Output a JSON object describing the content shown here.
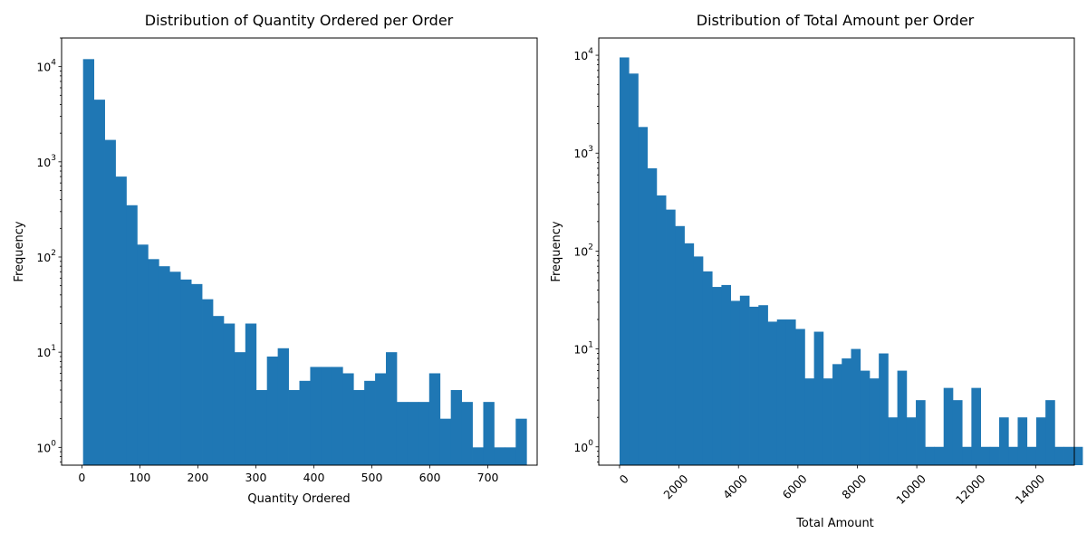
{
  "chart_data": [
    {
      "type": "bar",
      "title": "Distribution of Quantity Ordered per Order",
      "xlabel": "Quantity Ordered",
      "ylabel": "Frequency",
      "yscale": "log",
      "xlim": [
        -35,
        785
      ],
      "ylim": [
        0.65,
        20000
      ],
      "bin_start": 2,
      "bin_width": 18.65,
      "values": [
        12000,
        4500,
        1700,
        700,
        350,
        135,
        95,
        80,
        70,
        58,
        52,
        36,
        24,
        20,
        10,
        20,
        4,
        9,
        11,
        4,
        5,
        7,
        7,
        7,
        6,
        4,
        5,
        6,
        10,
        3,
        3,
        3,
        6,
        2,
        4,
        3,
        1,
        3,
        1,
        1,
        2
      ],
      "xticks": [
        0,
        100,
        200,
        300,
        400,
        500,
        600,
        700
      ],
      "xtick_labels": [
        "0",
        "100",
        "200",
        "300",
        "400",
        "500",
        "600",
        "700"
      ],
      "xtick_rotation": 0,
      "yticks": [
        1,
        10,
        100,
        1000,
        10000
      ],
      "ytick_labels": [
        {
          "base": "10",
          "exp": "0"
        },
        {
          "base": "10",
          "exp": "1"
        },
        {
          "base": "10",
          "exp": "2"
        },
        {
          "base": "10",
          "exp": "3"
        },
        {
          "base": "10",
          "exp": "4"
        }
      ],
      "color": "#1f77b4",
      "grid": false
    },
    {
      "type": "bar",
      "title": "Distribution of Total Amount per Order",
      "xlabel": "Total Amount",
      "ylabel": "Frequency",
      "yscale": "log",
      "xlim": [
        -700,
        15300
      ],
      "ylim": [
        0.65,
        15000
      ],
      "bin_start": 0,
      "bin_width": 311.5,
      "values": [
        9500,
        6500,
        1850,
        700,
        370,
        265,
        180,
        120,
        88,
        62,
        43,
        45,
        31,
        35,
        27,
        28,
        19,
        20,
        20,
        16,
        5,
        15,
        5,
        7,
        8,
        10,
        6,
        5,
        9,
        2,
        6,
        2,
        3,
        1,
        1,
        4,
        3,
        1,
        4,
        1,
        1,
        2,
        1,
        2,
        1,
        2,
        3,
        1,
        1,
        1
      ],
      "xticks": [
        0,
        2000,
        4000,
        6000,
        8000,
        10000,
        12000,
        14000
      ],
      "xtick_labels": [
        "0",
        "2000",
        "4000",
        "6000",
        "8000",
        "10000",
        "12000",
        "14000"
      ],
      "xtick_rotation": -45,
      "yticks": [
        1,
        10,
        100,
        1000,
        10000
      ],
      "ytick_labels": [
        {
          "base": "10",
          "exp": "0"
        },
        {
          "base": "10",
          "exp": "1"
        },
        {
          "base": "10",
          "exp": "2"
        },
        {
          "base": "10",
          "exp": "3"
        },
        {
          "base": "10",
          "exp": "4"
        }
      ],
      "color": "#1f77b4",
      "grid": false
    }
  ]
}
